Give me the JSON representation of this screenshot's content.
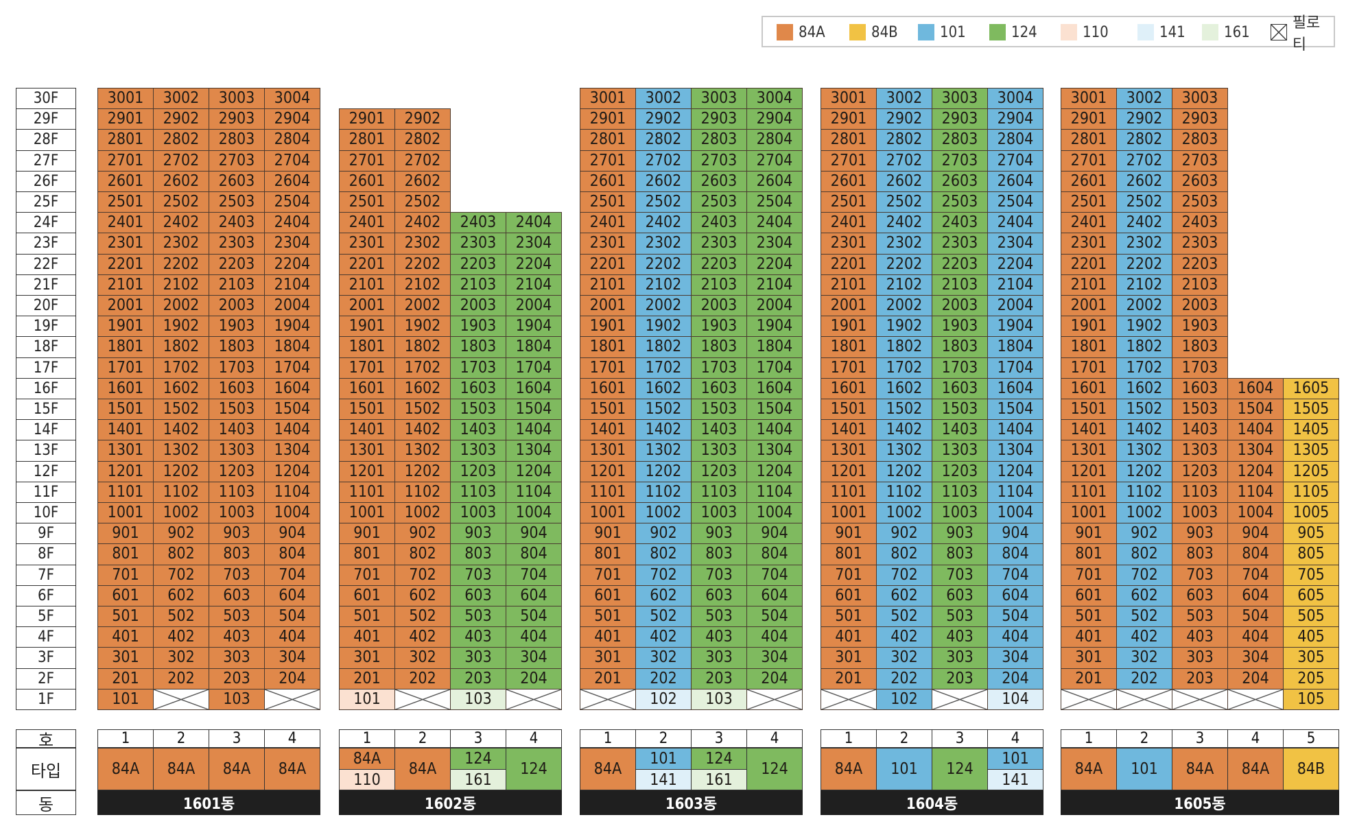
{
  "colors": {
    "84A": "#e0884a",
    "84B": "#f1c244",
    "101": "#6fb8dd",
    "124": "#7fba5f",
    "110": "#fbe1d1",
    "141": "#dff0f9",
    "161": "#e4f1dc",
    "piloti": "#ffffff"
  },
  "legend": [
    {
      "key": "84A",
      "label": "84A"
    },
    {
      "key": "84B",
      "label": "84B"
    },
    {
      "key": "101",
      "label": "101"
    },
    {
      "key": "124",
      "label": "124"
    },
    {
      "key": "110",
      "label": "110"
    },
    {
      "key": "141",
      "label": "141"
    },
    {
      "key": "161",
      "label": "161"
    },
    {
      "key": "piloti",
      "label": "필로티"
    }
  ],
  "floors": [
    "30F",
    "29F",
    "28F",
    "27F",
    "26F",
    "25F",
    "24F",
    "23F",
    "22F",
    "21F",
    "20F",
    "19F",
    "18F",
    "17F",
    "16F",
    "15F",
    "14F",
    "13F",
    "12F",
    "11F",
    "10F",
    "9F",
    "8F",
    "7F",
    "6F",
    "5F",
    "4F",
    "3F",
    "2F",
    "1F"
  ],
  "row_labels": {
    "ho": "호",
    "type": "타입",
    "dong": "동"
  },
  "buildings": [
    {
      "dong": "1601동",
      "lines": [
        {
          "ho": "1",
          "top": 30,
          "type": "84A",
          "first": {
            "label": "101",
            "type": "84A"
          }
        },
        {
          "ho": "2",
          "top": 30,
          "type": "84A",
          "first": {
            "label": "",
            "type": "piloti"
          }
        },
        {
          "ho": "3",
          "top": 30,
          "type": "84A",
          "first": {
            "label": "103",
            "type": "84A"
          }
        },
        {
          "ho": "4",
          "top": 30,
          "type": "84A",
          "first": {
            "label": "",
            "type": "piloti"
          }
        }
      ],
      "type_row": [
        {
          "labels": [
            "84A"
          ],
          "types": [
            "84A"
          ]
        },
        {
          "labels": [
            "84A"
          ],
          "types": [
            "84A"
          ]
        },
        {
          "labels": [
            "84A"
          ],
          "types": [
            "84A"
          ]
        },
        {
          "labels": [
            "84A"
          ],
          "types": [
            "84A"
          ]
        }
      ]
    },
    {
      "dong": "1602동",
      "lines": [
        {
          "ho": "1",
          "top": 29,
          "type": "84A",
          "first": {
            "label": "101",
            "type": "110"
          }
        },
        {
          "ho": "2",
          "top": 29,
          "type": "84A",
          "first": {
            "label": "",
            "type": "piloti"
          }
        },
        {
          "ho": "3",
          "top": 24,
          "type": "124",
          "first": {
            "label": "103",
            "type": "161"
          }
        },
        {
          "ho": "4",
          "top": 24,
          "type": "124",
          "first": {
            "label": "",
            "type": "piloti"
          }
        }
      ],
      "type_row": [
        {
          "labels": [
            "84A",
            "110"
          ],
          "types": [
            "84A",
            "110"
          ]
        },
        {
          "labels": [
            "84A"
          ],
          "types": [
            "84A"
          ]
        },
        {
          "labels": [
            "124",
            "161"
          ],
          "types": [
            "124",
            "161"
          ]
        },
        {
          "labels": [
            "124"
          ],
          "types": [
            "124"
          ]
        }
      ]
    },
    {
      "dong": "1603동",
      "lines": [
        {
          "ho": "1",
          "top": 30,
          "type": "84A",
          "first": {
            "label": "",
            "type": "piloti"
          }
        },
        {
          "ho": "2",
          "top": 30,
          "type": "101",
          "first": {
            "label": "102",
            "type": "141"
          }
        },
        {
          "ho": "3",
          "top": 30,
          "type": "124",
          "first": {
            "label": "103",
            "type": "161"
          }
        },
        {
          "ho": "4",
          "top": 30,
          "type": "124",
          "first": {
            "label": "",
            "type": "piloti"
          }
        }
      ],
      "type_row": [
        {
          "labels": [
            "84A"
          ],
          "types": [
            "84A"
          ]
        },
        {
          "labels": [
            "101",
            "141"
          ],
          "types": [
            "101",
            "141"
          ]
        },
        {
          "labels": [
            "124",
            "161"
          ],
          "types": [
            "124",
            "161"
          ]
        },
        {
          "labels": [
            "124"
          ],
          "types": [
            "124"
          ]
        }
      ]
    },
    {
      "dong": "1604동",
      "lines": [
        {
          "ho": "1",
          "top": 30,
          "type": "84A",
          "first": {
            "label": "",
            "type": "piloti"
          }
        },
        {
          "ho": "2",
          "top": 30,
          "type": "101",
          "first": {
            "label": "102",
            "type": "101"
          }
        },
        {
          "ho": "3",
          "top": 30,
          "type": "124",
          "first": {
            "label": "",
            "type": "piloti"
          }
        },
        {
          "ho": "4",
          "top": 30,
          "type": "101",
          "first": {
            "label": "104",
            "type": "141"
          }
        }
      ],
      "type_row": [
        {
          "labels": [
            "84A"
          ],
          "types": [
            "84A"
          ]
        },
        {
          "labels": [
            "101"
          ],
          "types": [
            "101"
          ]
        },
        {
          "labels": [
            "124"
          ],
          "types": [
            "124"
          ]
        },
        {
          "labels": [
            "101",
            "141"
          ],
          "types": [
            "101",
            "141"
          ]
        }
      ]
    },
    {
      "dong": "1605동",
      "lines": [
        {
          "ho": "1",
          "top": 30,
          "type": "84A",
          "first": {
            "label": "",
            "type": "piloti"
          }
        },
        {
          "ho": "2",
          "top": 30,
          "type": "101",
          "first": {
            "label": "",
            "type": "piloti"
          }
        },
        {
          "ho": "3",
          "top": 30,
          "type": "84A",
          "first": {
            "label": "",
            "type": "piloti"
          }
        },
        {
          "ho": "4",
          "top": 16,
          "type": "84A",
          "first": {
            "label": "",
            "type": "piloti"
          }
        },
        {
          "ho": "5",
          "top": 16,
          "type": "84B",
          "first": {
            "label": "105",
            "type": "84B"
          }
        }
      ],
      "type_row": [
        {
          "labels": [
            "84A"
          ],
          "types": [
            "84A"
          ]
        },
        {
          "labels": [
            "101"
          ],
          "types": [
            "101"
          ]
        },
        {
          "labels": [
            "84A"
          ],
          "types": [
            "84A"
          ]
        },
        {
          "labels": [
            "84A"
          ],
          "types": [
            "84A"
          ]
        },
        {
          "labels": [
            "84B"
          ],
          "types": [
            "84B"
          ]
        }
      ]
    }
  ]
}
